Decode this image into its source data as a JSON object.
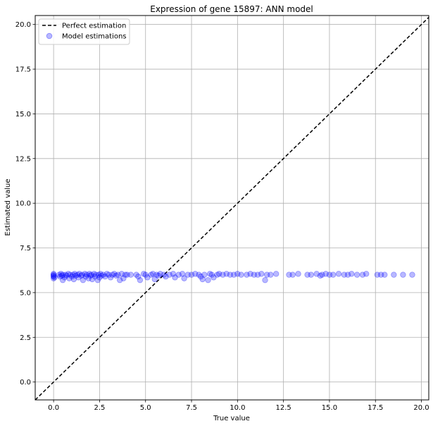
{
  "chart_data": {
    "type": "scatter",
    "title": "Expression of gene 15897: ANN model",
    "xlabel": "True value",
    "ylabel": "Estimated value",
    "xlim": [
      -1.0,
      20.4
    ],
    "ylim": [
      -1.0,
      20.5
    ],
    "xticks": [
      0.0,
      2.5,
      5.0,
      7.5,
      10.0,
      12.5,
      15.0,
      17.5,
      20.0
    ],
    "xtick_labels": [
      "0.0",
      "2.5",
      "5.0",
      "7.5",
      "10.0",
      "12.5",
      "15.0",
      "17.5",
      "20.0"
    ],
    "yticks": [
      0.0,
      2.5,
      5.0,
      7.5,
      10.0,
      12.5,
      15.0,
      17.5,
      20.0
    ],
    "ytick_labels": [
      "0.0",
      "2.5",
      "5.0",
      "7.5",
      "10.0",
      "12.5",
      "15.0",
      "17.5",
      "20.0"
    ],
    "grid": true,
    "legend": {
      "placement": "top-left",
      "entries": [
        "Perfect estimation",
        "Model estimations"
      ]
    },
    "series": [
      {
        "name": "Perfect estimation",
        "kind": "line",
        "style": "dashed",
        "color": "#000000",
        "x": [
          -1.0,
          20.5
        ],
        "y": [
          -1.0,
          20.5
        ]
      },
      {
        "name": "Model estimations",
        "kind": "scatter",
        "color": "#0000ff",
        "opacity": 0.28,
        "points": [
          [
            0.0,
            5.8
          ],
          [
            0.0,
            5.9
          ],
          [
            0.0,
            6.0
          ],
          [
            0.0,
            6.05
          ],
          [
            0.0,
            5.95
          ],
          [
            0.05,
            5.85
          ],
          [
            0.3,
            6.0
          ],
          [
            0.35,
            5.9
          ],
          [
            0.4,
            6.05
          ],
          [
            0.45,
            5.95
          ],
          [
            0.5,
            5.7
          ],
          [
            0.5,
            6.0
          ],
          [
            0.6,
            5.85
          ],
          [
            0.65,
            6.0
          ],
          [
            0.7,
            5.95
          ],
          [
            0.8,
            6.05
          ],
          [
            0.85,
            5.8
          ],
          [
            0.9,
            6.0
          ],
          [
            1.0,
            5.9
          ],
          [
            1.05,
            6.0
          ],
          [
            1.1,
            5.75
          ],
          [
            1.15,
            6.05
          ],
          [
            1.2,
            5.95
          ],
          [
            1.3,
            6.0
          ],
          [
            1.35,
            5.85
          ],
          [
            1.4,
            6.05
          ],
          [
            1.5,
            5.95
          ],
          [
            1.55,
            6.0
          ],
          [
            1.6,
            5.7
          ],
          [
            1.7,
            6.05
          ],
          [
            1.75,
            5.9
          ],
          [
            1.8,
            6.0
          ],
          [
            1.9,
            5.8
          ],
          [
            1.95,
            6.05
          ],
          [
            2.0,
            5.95
          ],
          [
            2.05,
            6.0
          ],
          [
            2.1,
            5.75
          ],
          [
            2.2,
            6.05
          ],
          [
            2.25,
            5.9
          ],
          [
            2.3,
            6.0
          ],
          [
            2.4,
            5.7
          ],
          [
            2.45,
            6.0
          ],
          [
            2.5,
            5.85
          ],
          [
            2.55,
            6.05
          ],
          [
            2.6,
            5.95
          ],
          [
            2.7,
            6.0
          ],
          [
            2.8,
            5.9
          ],
          [
            2.9,
            6.05
          ],
          [
            3.0,
            6.0
          ],
          [
            3.1,
            5.85
          ],
          [
            3.2,
            6.0
          ],
          [
            3.3,
            6.05
          ],
          [
            3.4,
            5.95
          ],
          [
            3.5,
            6.0
          ],
          [
            3.6,
            5.7
          ],
          [
            3.7,
            6.05
          ],
          [
            3.8,
            5.8
          ],
          [
            3.9,
            6.0
          ],
          [
            4.0,
            6.0
          ],
          [
            4.2,
            6.0
          ],
          [
            4.5,
            6.0
          ],
          [
            4.6,
            5.9
          ],
          [
            4.7,
            5.7
          ],
          [
            4.9,
            6.05
          ],
          [
            5.0,
            6.0
          ],
          [
            5.1,
            5.85
          ],
          [
            5.3,
            6.0
          ],
          [
            5.4,
            6.05
          ],
          [
            5.5,
            5.75
          ],
          [
            5.6,
            6.0
          ],
          [
            5.7,
            5.95
          ],
          [
            5.8,
            6.05
          ],
          [
            6.0,
            6.0
          ],
          [
            6.1,
            5.9
          ],
          [
            6.3,
            6.0
          ],
          [
            6.5,
            6.05
          ],
          [
            6.6,
            5.85
          ],
          [
            6.8,
            6.0
          ],
          [
            7.0,
            6.05
          ],
          [
            7.1,
            5.8
          ],
          [
            7.3,
            6.0
          ],
          [
            7.5,
            6.0
          ],
          [
            7.7,
            6.05
          ],
          [
            7.9,
            6.0
          ],
          [
            8.0,
            5.9
          ],
          [
            8.1,
            5.75
          ],
          [
            8.2,
            6.0
          ],
          [
            8.4,
            5.7
          ],
          [
            8.5,
            6.05
          ],
          [
            8.6,
            6.0
          ],
          [
            8.7,
            5.85
          ],
          [
            8.9,
            6.0
          ],
          [
            9.0,
            6.05
          ],
          [
            9.2,
            6.0
          ],
          [
            9.4,
            6.05
          ],
          [
            9.6,
            6.0
          ],
          [
            9.8,
            6.0
          ],
          [
            10.0,
            6.05
          ],
          [
            10.2,
            6.0
          ],
          [
            10.5,
            6.0
          ],
          [
            10.7,
            6.05
          ],
          [
            10.9,
            6.0
          ],
          [
            11.1,
            6.0
          ],
          [
            11.3,
            6.05
          ],
          [
            11.5,
            5.7
          ],
          [
            11.6,
            6.0
          ],
          [
            11.8,
            6.0
          ],
          [
            12.1,
            6.05
          ],
          [
            12.8,
            6.0
          ],
          [
            13.0,
            6.0
          ],
          [
            13.3,
            6.05
          ],
          [
            13.8,
            6.0
          ],
          [
            14.0,
            6.0
          ],
          [
            14.3,
            6.05
          ],
          [
            14.5,
            5.95
          ],
          [
            14.6,
            6.0
          ],
          [
            14.8,
            6.05
          ],
          [
            15.0,
            6.0
          ],
          [
            15.2,
            6.0
          ],
          [
            15.5,
            6.05
          ],
          [
            15.8,
            6.0
          ],
          [
            16.0,
            6.0
          ],
          [
            16.2,
            6.05
          ],
          [
            16.5,
            6.0
          ],
          [
            16.8,
            6.0
          ],
          [
            17.0,
            6.05
          ],
          [
            17.6,
            6.0
          ],
          [
            17.8,
            6.0
          ],
          [
            18.0,
            6.0
          ],
          [
            18.5,
            6.0
          ],
          [
            19.0,
            6.0
          ],
          [
            19.5,
            6.0
          ]
        ]
      }
    ]
  }
}
